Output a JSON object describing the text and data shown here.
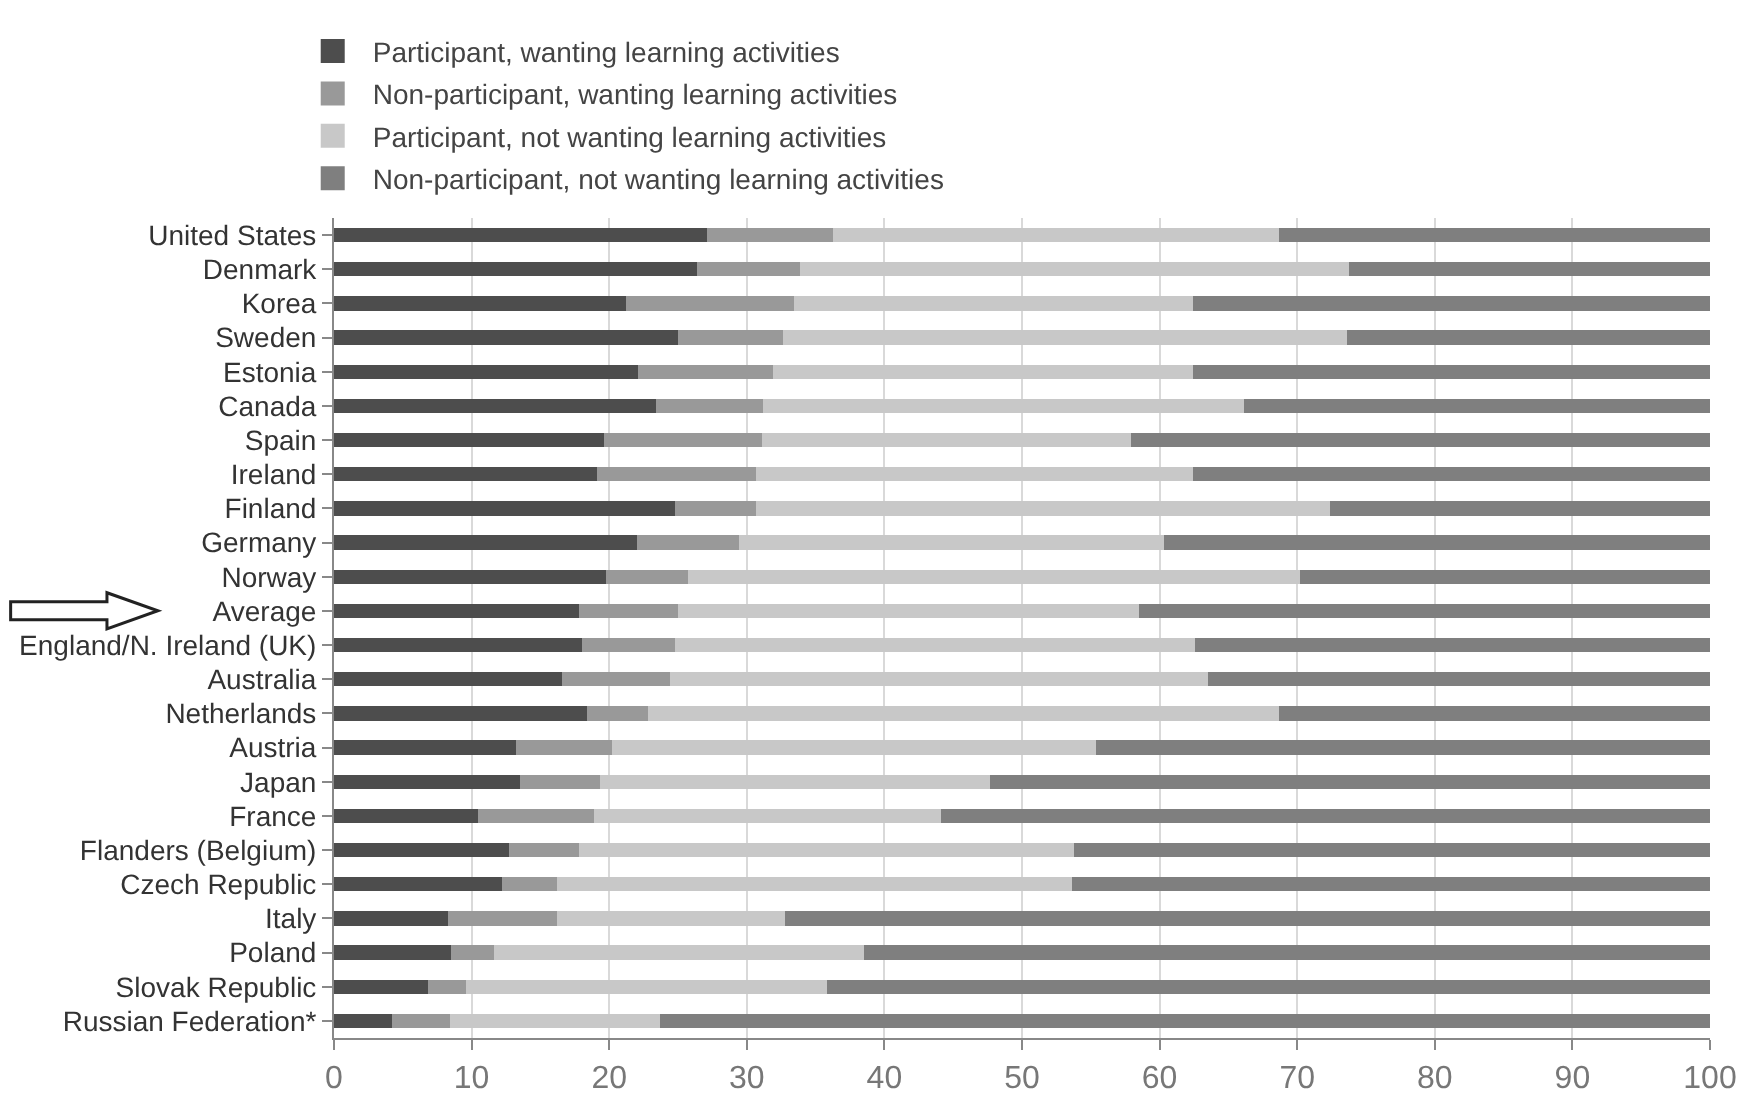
{
  "chart_data": {
    "type": "bar",
    "orientation": "horizontal",
    "stacked": true,
    "categories": [
      "United States",
      "Denmark",
      "Korea",
      "Sweden",
      "Estonia",
      "Canada",
      "Spain",
      "Ireland",
      "Finland",
      "Germany",
      "Norway",
      "Average",
      "England/N. Ireland (UK)",
      "Australia",
      "Netherlands",
      "Austria",
      "Japan",
      "France",
      "Flanders (Belgium)",
      "Czech Republic",
      "Italy",
      "Poland",
      "Slovak Republic",
      "Russian Federation*"
    ],
    "series": [
      {
        "name": "Participant, wanting learning activities",
        "color": "#4d4d4d",
        "values": [
          27.1,
          26.4,
          21.2,
          25.0,
          22.1,
          23.4,
          19.6,
          19.1,
          24.8,
          22.0,
          19.8,
          17.8,
          18.0,
          16.6,
          18.4,
          13.2,
          13.5,
          10.5,
          12.7,
          12.2,
          8.3,
          8.5,
          6.8,
          4.2
        ]
      },
      {
        "name": "Non-participant, wanting learning activities",
        "color": "#999999",
        "values": [
          9.2,
          7.5,
          12.2,
          7.6,
          9.8,
          7.8,
          11.5,
          11.6,
          5.9,
          7.4,
          5.9,
          7.2,
          6.8,
          7.8,
          4.4,
          7.0,
          5.8,
          8.4,
          5.1,
          4.0,
          7.9,
          3.1,
          2.8,
          4.2
        ]
      },
      {
        "name": "Participant, not wanting learning activities",
        "color": "#c8c8c8",
        "values": [
          32.4,
          39.9,
          29.0,
          41.0,
          30.5,
          34.9,
          26.8,
          31.7,
          41.7,
          30.9,
          44.5,
          33.5,
          37.8,
          39.1,
          45.9,
          35.2,
          28.4,
          25.2,
          36.0,
          37.4,
          16.6,
          26.9,
          26.2,
          15.3
        ]
      },
      {
        "name": "Non-participant, not wanting learning activities",
        "color": "#7f7f7f",
        "values": [
          31.3,
          26.2,
          37.6,
          26.4,
          37.6,
          33.9,
          42.1,
          37.6,
          27.6,
          39.7,
          29.8,
          41.5,
          37.4,
          36.5,
          31.3,
          44.6,
          52.3,
          55.9,
          46.2,
          46.4,
          67.2,
          61.5,
          64.2,
          76.3
        ]
      }
    ],
    "xlim": [
      0,
      100
    ],
    "xticks": [
      0,
      10,
      20,
      30,
      40,
      50,
      60,
      70,
      80,
      90,
      100
    ],
    "grid": "x",
    "legend": "top"
  }
}
